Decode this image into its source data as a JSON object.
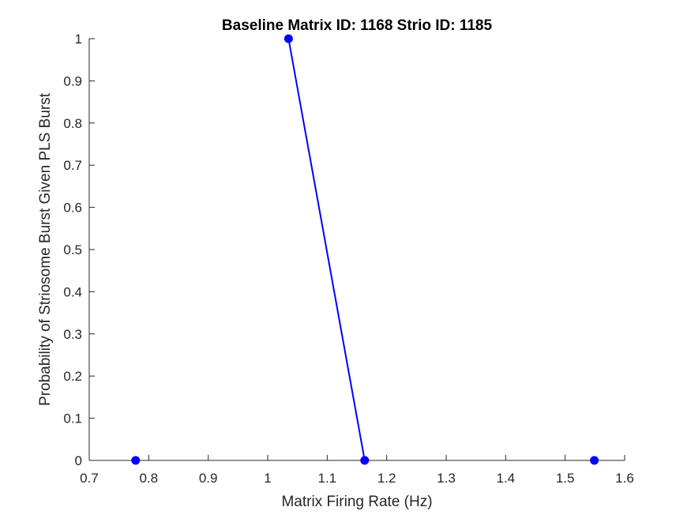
{
  "chart_data": {
    "type": "line",
    "title": "Baseline Matrix ID: 1168 Strio ID: 1185",
    "xlabel": "Matrix Firing Rate (Hz)",
    "ylabel": "Probability of Striosome Burst Given PLS Burst",
    "xlim": [
      0.7,
      1.6
    ],
    "ylim": [
      0,
      1
    ],
    "xticks": [
      0.7,
      0.8,
      0.9,
      1.0,
      1.1,
      1.2,
      1.3,
      1.4,
      1.5,
      1.6
    ],
    "xtick_labels": [
      "0.7",
      "0.8",
      "0.9",
      "1",
      "1.1",
      "1.2",
      "1.3",
      "1.4",
      "1.5",
      "1.6"
    ],
    "yticks": [
      0,
      0.1,
      0.2,
      0.3,
      0.4,
      0.5,
      0.6,
      0.7,
      0.8,
      0.9,
      1.0
    ],
    "ytick_labels": [
      "0",
      "0.1",
      "0.2",
      "0.3",
      "0.4",
      "0.5",
      "0.6",
      "0.7",
      "0.8",
      "0.9",
      "1"
    ],
    "grid": false,
    "series": [
      {
        "line_points": [
          {
            "x": 1.035,
            "y": 1.0
          },
          {
            "x": 1.163,
            "y": 0.0
          }
        ],
        "markers": [
          {
            "x": 0.778,
            "y": 0.0
          },
          {
            "x": 1.035,
            "y": 1.0
          },
          {
            "x": 1.163,
            "y": 0.0
          },
          {
            "x": 1.549,
            "y": 0.0
          }
        ],
        "color": "#0000ff"
      }
    ]
  }
}
